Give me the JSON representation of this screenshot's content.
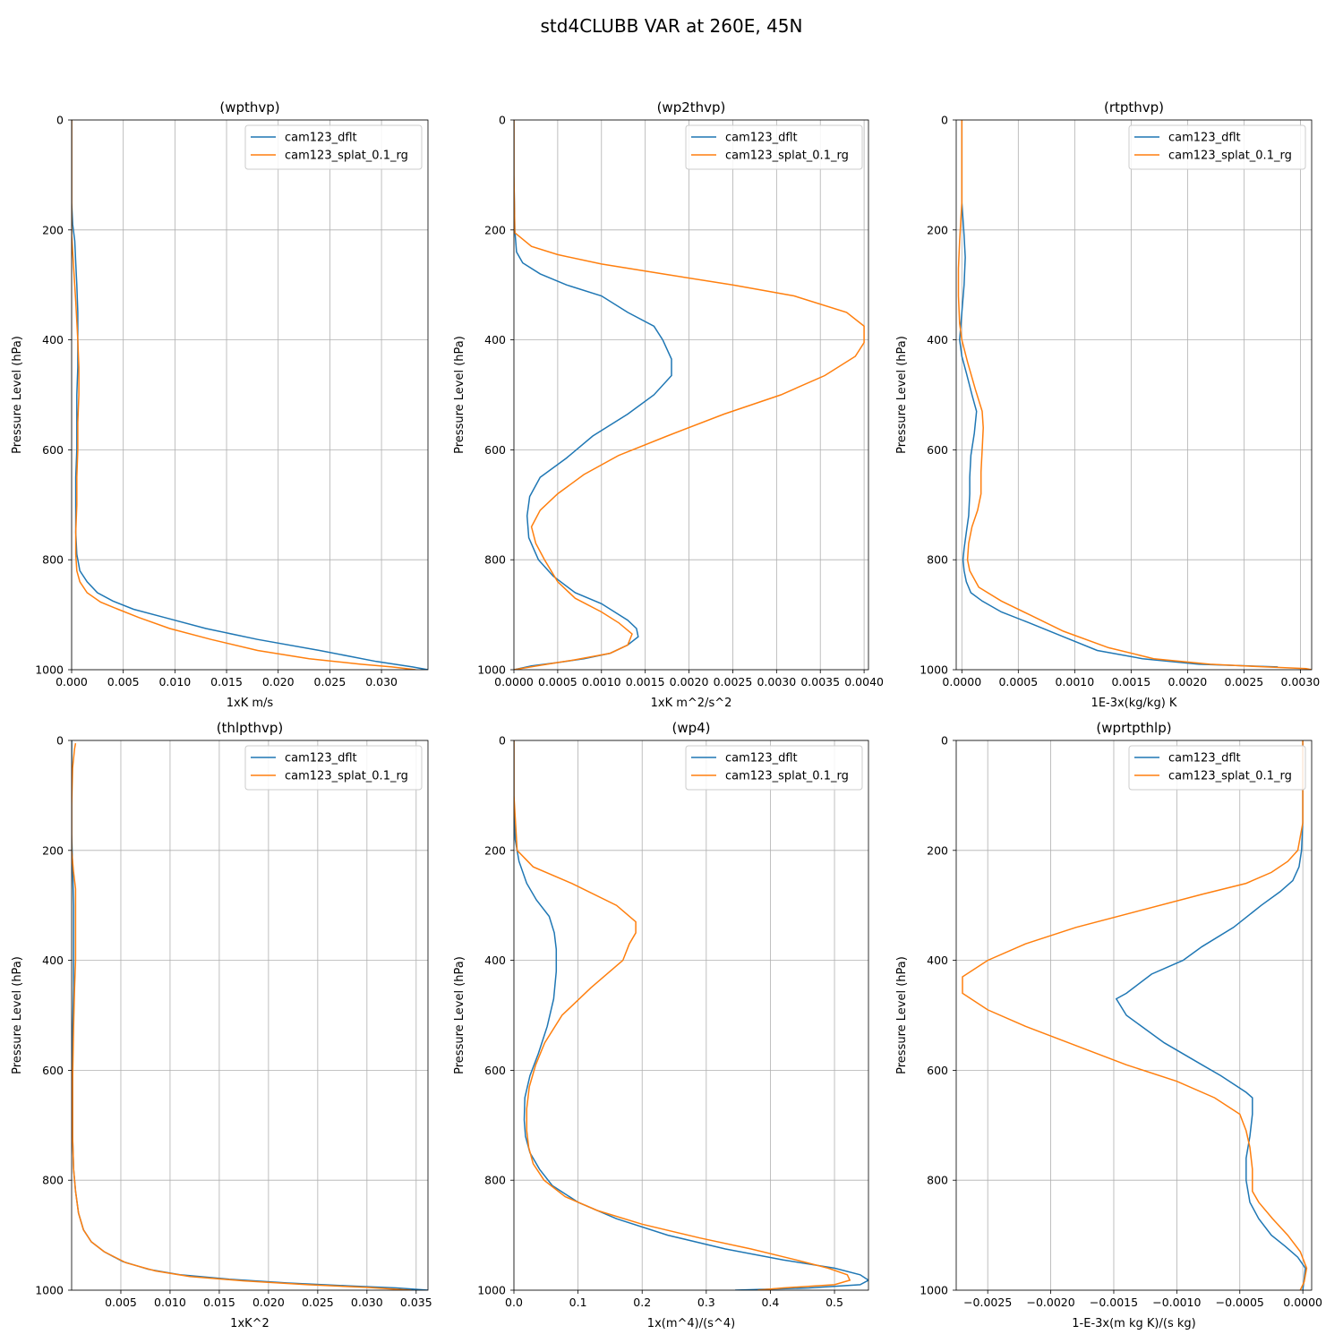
{
  "figure": {
    "title": "std4CLUBB VAR at 260E, 45N"
  },
  "series_colors": {
    "cam123_dflt": "#1f77b4",
    "cam123_splat_0.1_rg": "#ff7f0e"
  },
  "chart_data": [
    {
      "type": "line",
      "title": "(wpthvp)",
      "xlabel": "1xK m/s",
      "ylabel": "Pressure Level (hPa)",
      "xlim": [
        0,
        0.0345
      ],
      "ylim": [
        1000,
        0
      ],
      "y_inverted": true,
      "grid": true,
      "legend": "upper right",
      "xticks": [
        0,
        0.005,
        0.01,
        0.015,
        0.02,
        0.025,
        0.03
      ],
      "xtick_labels": [
        "0.000",
        "0.005",
        "0.010",
        "0.015",
        "0.020",
        "0.025",
        "0.030"
      ],
      "yticks": [
        0,
        200,
        400,
        600,
        800,
        1000
      ],
      "ytick_labels": [
        "0",
        "200",
        "400",
        "600",
        "800",
        "1000"
      ],
      "series": [
        {
          "name": "cam123_dflt",
          "color": "#1f77b4",
          "x": [
            0,
            0,
            0.0001,
            0.0003,
            0.0004,
            0.0005,
            0.0006,
            0.0006,
            0.0006,
            0.0005,
            0.0005,
            0.0005,
            0.0004,
            0.0004,
            0.0004,
            0.0005,
            0.0008,
            0.0015,
            0.0025,
            0.004,
            0.006,
            0.009,
            0.013,
            0.018,
            0.024,
            0.0295,
            0.033,
            0.0345
          ],
          "y": [
            0,
            150,
            190,
            220,
            260,
            300,
            350,
            400,
            450,
            500,
            550,
            600,
            650,
            700,
            750,
            790,
            820,
            840,
            860,
            875,
            890,
            905,
            925,
            945,
            965,
            985,
            995,
            1000
          ]
        },
        {
          "name": "cam123_splat_0.1_rg",
          "color": "#ff7f0e",
          "x": [
            0,
            0,
            0,
            0.0002,
            0.0004,
            0.0006,
            0.0007,
            0.0007,
            0.0006,
            0.0006,
            0.0005,
            0.0005,
            0.0004,
            0.0004,
            0.0005,
            0.0008,
            0.0015,
            0.0028,
            0.0045,
            0.0065,
            0.0095,
            0.0135,
            0.018,
            0.023,
            0.028,
            0.031,
            0.0333
          ],
          "y": [
            0,
            150,
            210,
            270,
            330,
            400,
            450,
            500,
            550,
            600,
            650,
            700,
            750,
            790,
            820,
            840,
            860,
            877,
            890,
            905,
            925,
            945,
            965,
            980,
            990,
            995,
            1000
          ]
        }
      ]
    },
    {
      "type": "line",
      "title": "(wp2thvp)",
      "xlabel": "1xK m^2/s^2",
      "ylabel": "Pressure Level (hPa)",
      "xlim": [
        0,
        0.00405
      ],
      "ylim": [
        1000,
        0
      ],
      "y_inverted": true,
      "grid": true,
      "legend": "upper right",
      "xticks": [
        0,
        0.0005,
        0.001,
        0.0015,
        0.002,
        0.0025,
        0.003,
        0.0035,
        0.004
      ],
      "xtick_labels": [
        "0.0000",
        "0.0005",
        "0.0010",
        "0.0015",
        "0.0020",
        "0.0025",
        "0.0030",
        "0.0035",
        "0.0040"
      ],
      "yticks": [
        0,
        200,
        400,
        600,
        800,
        1000
      ],
      "ytick_labels": [
        "0",
        "200",
        "400",
        "600",
        "800",
        "1000"
      ],
      "series": [
        {
          "name": "cam123_dflt",
          "color": "#1f77b4",
          "x": [
            0,
            0,
            1e-05,
            3e-05,
            0.0001,
            0.0003,
            0.0006,
            0.001,
            0.0013,
            0.0016,
            0.0017,
            0.0018,
            0.0018,
            0.0016,
            0.0013,
            0.0009,
            0.0006,
            0.0003,
            0.00018,
            0.00015,
            0.00017,
            0.00028,
            0.00045,
            0.0007,
            0.001,
            0.0013,
            0.0014,
            0.00142,
            0.0013,
            0.0011,
            0.0008,
            0.0005,
            0.0002,
            0
          ],
          "y": [
            0,
            100,
            200,
            240,
            260,
            280,
            300,
            320,
            350,
            375,
            400,
            435,
            465,
            500,
            535,
            575,
            615,
            650,
            685,
            720,
            760,
            800,
            830,
            860,
            880,
            910,
            925,
            940,
            955,
            970,
            980,
            987,
            993,
            1000
          ]
        },
        {
          "name": "cam123_splat_0.1_rg",
          "color": "#ff7f0e",
          "x": [
            0,
            0,
            1e-05,
            0.0002,
            0.0005,
            0.001,
            0.0017,
            0.0025,
            0.0032,
            0.0038,
            0.004,
            0.004,
            0.0039,
            0.00355,
            0.00305,
            0.0024,
            0.00175,
            0.0012,
            0.0008,
            0.0005,
            0.0003,
            0.0002,
            0.00025,
            0.00035,
            0.0005,
            0.0007,
            0.001,
            0.0012,
            0.00135,
            0.0013,
            0.0011,
            0.0007,
            0.0003,
            0
          ],
          "y": [
            0,
            100,
            205,
            230,
            245,
            262,
            280,
            300,
            320,
            350,
            375,
            405,
            430,
            465,
            500,
            535,
            575,
            610,
            645,
            680,
            710,
            740,
            770,
            800,
            840,
            870,
            895,
            915,
            935,
            955,
            970,
            982,
            992,
            1000
          ]
        }
      ]
    },
    {
      "type": "line",
      "title": "(rtpthvp)",
      "xlabel": "1E-3x(kg/kg) K",
      "ylabel": "Pressure Level (hPa)",
      "xlim": [
        -5e-05,
        0.0031
      ],
      "ylim": [
        1000,
        0
      ],
      "y_inverted": true,
      "grid": true,
      "legend": "upper right",
      "xticks": [
        0,
        0.0005,
        0.001,
        0.0015,
        0.002,
        0.0025,
        0.003
      ],
      "xtick_labels": [
        "0.0000",
        "0.0005",
        "0.0010",
        "0.0015",
        "0.0020",
        "0.0025",
        "0.0030"
      ],
      "yticks": [
        0,
        200,
        400,
        600,
        800,
        1000
      ],
      "ytick_labels": [
        "0",
        "200",
        "400",
        "600",
        "800",
        "1000"
      ],
      "series": [
        {
          "name": "cam123_dflt",
          "color": "#1f77b4",
          "x": [
            0,
            0,
            2e-05,
            3e-05,
            2e-05,
            0,
            -2e-05,
            0,
            4e-05,
            9e-05,
            0.00013,
            0.00011,
            8e-05,
            7e-05,
            7e-05,
            6e-05,
            4e-05,
            2e-05,
            1e-05,
            2e-05,
            4e-05,
            8e-05,
            0.00018,
            0.00035,
            0.0006,
            0.0009,
            0.0012,
            0.0016,
            0.0021,
            0.0028
          ],
          "y": [
            0,
            150,
            210,
            250,
            300,
            350,
            400,
            430,
            460,
            500,
            530,
            570,
            610,
            650,
            680,
            720,
            750,
            780,
            800,
            820,
            840,
            860,
            875,
            895,
            915,
            940,
            965,
            980,
            990,
            995
          ]
        },
        {
          "name": "cam123_splat_0.1_rg",
          "color": "#ff7f0e",
          "x": [
            0,
            0,
            -2e-05,
            -3e-05,
            -3e-05,
            -2e-05,
            0,
            5e-05,
            0.00012,
            0.00018,
            0.00019,
            0.00018,
            0.00017,
            0.00017,
            0.00014,
            9e-05,
            6e-05,
            5e-05,
            7e-05,
            0.00015,
            0.00035,
            0.0006,
            0.0009,
            0.0013,
            0.0017,
            0.0022,
            0.0027,
            0.00305,
            0.0031
          ],
          "y": [
            0,
            150,
            220,
            270,
            320,
            370,
            400,
            440,
            490,
            530,
            560,
            600,
            640,
            680,
            710,
            740,
            770,
            800,
            820,
            850,
            875,
            900,
            930,
            960,
            980,
            990,
            995,
            998,
            1000
          ]
        }
      ]
    },
    {
      "type": "line",
      "title": "(thlpthvp)",
      "xlabel": "1xK^2",
      "ylabel": "Pressure Level (hPa)",
      "xlim": [
        0,
        0.0362
      ],
      "ylim": [
        1000,
        0
      ],
      "y_inverted": true,
      "grid": true,
      "legend": "upper right",
      "xticks": [
        0.005,
        0.01,
        0.015,
        0.02,
        0.025,
        0.03,
        0.035
      ],
      "xtick_labels": [
        "0.005",
        "0.010",
        "0.015",
        "0.020",
        "0.025",
        "0.030",
        "0.035"
      ],
      "yticks": [
        0,
        200,
        400,
        600,
        800,
        1000
      ],
      "ytick_labels": [
        "0",
        "200",
        "400",
        "600",
        "800",
        "1000"
      ],
      "series": [
        {
          "name": "cam123_dflt",
          "color": "#1f77b4",
          "x": [
            0,
            0,
            0,
            0.0001,
            0.0002,
            0.0002,
            0.0002,
            0.0001,
            0.0001,
            0.0001,
            0.0002,
            0.0004,
            0.0007,
            0.0012,
            0.002,
            0.0033,
            0.0052,
            0.0078,
            0.011,
            0.016,
            0.022,
            0.028,
            0.033,
            0.0362
          ],
          "y": [
            0,
            100,
            170,
            230,
            300,
            380,
            450,
            530,
            620,
            720,
            780,
            820,
            860,
            890,
            912,
            930,
            948,
            962,
            972,
            980,
            987,
            992,
            996,
            1000
          ]
        },
        {
          "name": "cam123_splat_0.1_rg",
          "color": "#ff7f0e",
          "x": [
            0.0004,
            0.0003,
            0.0001,
            0,
            0,
            0.0002,
            0.0004,
            0.0004,
            0.0004,
            0.0003,
            0.0002,
            0.0001,
            0.0001,
            0.0002,
            0.0004,
            0.0007,
            0.0012,
            0.002,
            0.0033,
            0.0055,
            0.0085,
            0.012,
            0.0175,
            0.024,
            0.03,
            0.0345
          ],
          "y": [
            5,
            15,
            50,
            120,
            200,
            240,
            270,
            330,
            400,
            450,
            520,
            620,
            720,
            780,
            820,
            860,
            890,
            912,
            930,
            950,
            965,
            975,
            983,
            990,
            995,
            1000
          ]
        }
      ]
    },
    {
      "type": "line",
      "title": "(wp4)",
      "xlabel": "1x(m^4)/(s^4)",
      "ylabel": "Pressure Level (hPa)",
      "xlim": [
        0,
        0.553
      ],
      "ylim": [
        1000,
        0
      ],
      "y_inverted": true,
      "grid": true,
      "legend": "upper right",
      "xticks": [
        0,
        0.1,
        0.2,
        0.3,
        0.4,
        0.5
      ],
      "xtick_labels": [
        "0.0",
        "0.1",
        "0.2",
        "0.3",
        "0.4",
        "0.5"
      ],
      "yticks": [
        0,
        200,
        400,
        600,
        800,
        1000
      ],
      "ytick_labels": [
        "0",
        "200",
        "400",
        "600",
        "800",
        "1000"
      ],
      "series": [
        {
          "name": "cam123_dflt",
          "color": "#1f77b4",
          "x": [
            0,
            0,
            0.002,
            0.008,
            0.02,
            0.035,
            0.055,
            0.063,
            0.066,
            0.066,
            0.062,
            0.052,
            0.038,
            0.025,
            0.017,
            0.016,
            0.018,
            0.025,
            0.04,
            0.06,
            0.1,
            0.16,
            0.24,
            0.33,
            0.42,
            0.5,
            0.54,
            0.553,
            0.54,
            0.46,
            0.345
          ],
          "y": [
            0,
            100,
            180,
            220,
            260,
            290,
            320,
            350,
            380,
            420,
            470,
            520,
            570,
            610,
            650,
            690,
            720,
            750,
            780,
            810,
            840,
            870,
            900,
            925,
            945,
            960,
            972,
            982,
            990,
            996,
            1000
          ]
        },
        {
          "name": "cam123_splat_0.1_rg",
          "color": "#ff7f0e",
          "x": [
            0,
            0,
            0.005,
            0.03,
            0.09,
            0.16,
            0.19,
            0.19,
            0.18,
            0.17,
            0.12,
            0.075,
            0.048,
            0.034,
            0.024,
            0.02,
            0.02,
            0.023,
            0.03,
            0.047,
            0.08,
            0.13,
            0.2,
            0.29,
            0.37,
            0.44,
            0.49,
            0.52,
            0.524,
            0.5,
            0.42,
            0.38
          ],
          "y": [
            0,
            100,
            200,
            230,
            260,
            300,
            330,
            350,
            370,
            400,
            450,
            500,
            550,
            590,
            630,
            670,
            710,
            740,
            770,
            800,
            830,
            855,
            880,
            905,
            925,
            945,
            960,
            972,
            982,
            990,
            996,
            1000
          ]
        }
      ]
    },
    {
      "type": "line",
      "title": "(wprtpthlp)",
      "xlabel": "1-E-3x(m kg K)/(s kg)",
      "ylabel": "Pressure Level (hPa)",
      "xlim": [
        -0.00275,
        7e-05
      ],
      "ylim": [
        1000,
        0
      ],
      "y_inverted": true,
      "grid": true,
      "legend": "upper right",
      "xticks": [
        -0.0025,
        -0.002,
        -0.0015,
        -0.001,
        -0.0005,
        0
      ],
      "xtick_labels": [
        "−0.0025",
        "−0.0020",
        "−0.0015",
        "−0.0010",
        "−0.0005",
        "0.0000"
      ],
      "yticks": [
        0,
        200,
        400,
        600,
        800,
        1000
      ],
      "ytick_labels": [
        "0",
        "200",
        "400",
        "600",
        "800",
        "1000"
      ],
      "series": [
        {
          "name": "cam123_dflt",
          "color": "#1f77b4",
          "x": [
            0,
            0,
            -1e-05,
            -3e-05,
            -8e-05,
            -0.00018,
            -0.00033,
            -0.00055,
            -0.0008,
            -0.00095,
            -0.0012,
            -0.0014,
            -0.00148,
            -0.0014,
            -0.0011,
            -0.0008,
            -0.00065,
            -0.00045,
            -0.0004,
            -0.0004,
            -0.00042,
            -0.00045,
            -0.00045,
            -0.00042,
            -0.00035,
            -0.00025,
            -0.00014,
            -4e-05,
            2e-05,
            1e-05,
            0
          ],
          "y": [
            0,
            150,
            200,
            230,
            255,
            275,
            300,
            340,
            375,
            400,
            425,
            460,
            470,
            500,
            550,
            590,
            610,
            640,
            650,
            680,
            720,
            760,
            800,
            840,
            870,
            900,
            920,
            940,
            960,
            980,
            1000
          ]
        },
        {
          "name": "cam123_splat_0.1_rg",
          "color": "#ff7f0e",
          "x": [
            0,
            0,
            -4e-05,
            -0.00012,
            -0.00025,
            -0.00045,
            -0.0008,
            -0.0013,
            -0.0018,
            -0.0022,
            -0.0025,
            -0.0027,
            -0.0027,
            -0.0027,
            -0.0025,
            -0.0022,
            -0.0018,
            -0.0014,
            -0.001,
            -0.0007,
            -0.0005,
            -0.00045,
            -0.00042,
            -0.0004,
            -0.0004,
            -0.00035,
            -0.00024,
            -0.00012,
            -2e-05,
            3e-05,
            1e-05,
            -2e-05
          ],
          "y": [
            0,
            150,
            200,
            220,
            240,
            260,
            280,
            310,
            340,
            370,
            400,
            430,
            450,
            460,
            490,
            520,
            555,
            590,
            620,
            650,
            680,
            710,
            740,
            780,
            820,
            840,
            870,
            900,
            930,
            960,
            985,
            1000
          ]
        }
      ]
    }
  ]
}
